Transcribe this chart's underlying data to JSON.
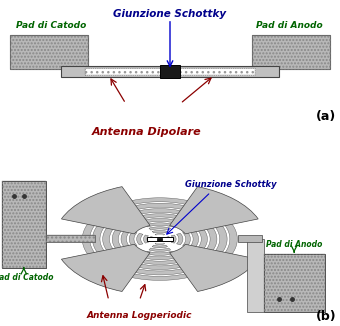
{
  "bg_color": "#ffffff",
  "title_a_color": "#00008B",
  "label_color_green": "#006400",
  "label_color_red": "#8B0000",
  "label_color_blue": "#00008B",
  "pad_fill": "#b8b8b8",
  "pad_fill2": "#d0d0d0",
  "pad_edge": "#444444",
  "antenna_fill": "#c0c0c0",
  "antenna_edge": "#444444",
  "arc_fill": "#c0c0c0",
  "arc_edge": "#555555",
  "arrow_color_blue": "#0000CC",
  "arrow_color_red": "#8B0000",
  "arrow_color_green": "#006400",
  "panel_a_label": "(a)",
  "panel_b_label": "(b)",
  "title_a": "Giunzione Schottky",
  "title_b": "Giunzione Schottky",
  "label_catodo": "Pad di Catodo",
  "label_anodo": "Pad di Anodo",
  "label_dipolare": "Antenna Dipolare",
  "label_logperiodic": "Antenna Logperiodic"
}
